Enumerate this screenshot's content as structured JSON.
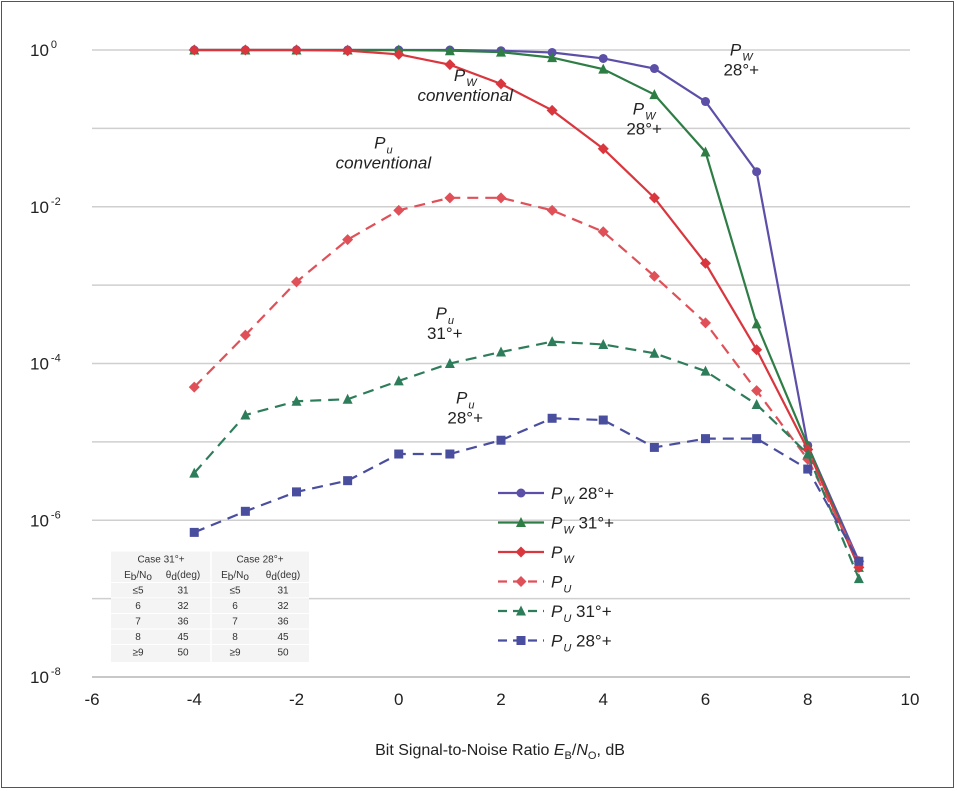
{
  "chart_data": {
    "type": "line",
    "y_scale": "log",
    "xlim": [
      -6,
      10
    ],
    "ylim": [
      1e-08,
      1
    ],
    "x_ticks": [
      "-6",
      "-4",
      "-2",
      "0",
      "2",
      "4",
      "6",
      "8",
      "10"
    ],
    "y_ticks": [
      {
        "base": "10",
        "exp": "0"
      },
      {
        "base": "10",
        "exp": "-2"
      },
      {
        "base": "10",
        "exp": "-4"
      },
      {
        "base": "10",
        "exp": "-6"
      },
      {
        "base": "10",
        "exp": "-8"
      }
    ],
    "grid": "horizontal",
    "xlabel": {
      "prefix": "Bit Signal-to-Noise Ratio ",
      "e": "E",
      "e_sub": "B",
      "slash": "/",
      "n": "N",
      "n_sub": "O",
      "suffix": ", dB"
    },
    "legend_position": "bottom-center",
    "series": [
      {
        "name_main": "P",
        "name_sub": "W",
        "name_suffix": " 28°+",
        "color": "#5b4fa8",
        "dash": false,
        "marker": "circle",
        "x": [
          -4,
          -3,
          -2,
          -1,
          0,
          1,
          2,
          3,
          4,
          5,
          6,
          7,
          8,
          9
        ],
        "y": [
          1.0,
          1.0,
          1.0,
          1.0,
          1.0,
          1.0,
          0.98,
          0.93,
          0.78,
          0.58,
          0.22,
          0.028,
          9e-06,
          3e-07
        ]
      },
      {
        "name_main": "P",
        "name_sub": "W",
        "name_suffix": " 31°+",
        "color": "#2e7d45",
        "dash": false,
        "marker": "triangle",
        "x": [
          -4,
          -3,
          -2,
          -1,
          0,
          1,
          2,
          3,
          4,
          5,
          6,
          7,
          8,
          9
        ],
        "y": [
          1.0,
          1.0,
          1.0,
          1.0,
          1.0,
          0.98,
          0.94,
          0.8,
          0.57,
          0.27,
          0.05,
          0.00032,
          9e-06,
          2.5e-07
        ]
      },
      {
        "name_main": "P",
        "name_sub": "W",
        "name_suffix": "",
        "color": "#d9363e",
        "dash": false,
        "marker": "diamond",
        "x": [
          -4,
          -3,
          -2,
          -1,
          0,
          1,
          2,
          3,
          4,
          5,
          6,
          7,
          8,
          9
        ],
        "y": [
          1.0,
          1.0,
          1.0,
          0.98,
          0.88,
          0.65,
          0.37,
          0.17,
          0.055,
          0.013,
          0.0019,
          0.00015,
          8e-06,
          2.5e-07
        ]
      },
      {
        "name_main": "P",
        "name_sub": "U",
        "name_suffix": "",
        "color": "#e05058",
        "dash": true,
        "marker": "diamond",
        "x": [
          -4,
          -3,
          -2,
          -1,
          0,
          1,
          2,
          3,
          4,
          5,
          6,
          7,
          8,
          9
        ],
        "y": [
          5e-05,
          0.00023,
          0.0011,
          0.0038,
          0.009,
          0.013,
          0.013,
          0.009,
          0.0048,
          0.0013,
          0.00033,
          4.5e-05,
          6e-06,
          3e-07
        ]
      },
      {
        "name_main": "P",
        "name_sub": "U",
        "name_suffix": " 31°+",
        "color": "#2e7d5a",
        "dash": true,
        "marker": "triangle",
        "x": [
          -4,
          -3,
          -2,
          -1,
          0,
          1,
          2,
          3,
          4,
          5,
          6,
          7,
          8,
          9
        ],
        "y": [
          4e-06,
          2.2e-05,
          3.3e-05,
          3.5e-05,
          6e-05,
          0.0001,
          0.00014,
          0.00019,
          0.000175,
          0.000135,
          8e-05,
          3e-05,
          7e-06,
          1.8e-07
        ]
      },
      {
        "name_main": "P",
        "name_sub": "U",
        "name_suffix": " 28°+",
        "color": "#4a4e9e",
        "dash": true,
        "marker": "square",
        "x": [
          -4,
          -3,
          -2,
          -1,
          0,
          1,
          2,
          3,
          4,
          5,
          6,
          7,
          8,
          9
        ],
        "y": [
          7e-07,
          1.3e-06,
          2.3e-06,
          3.2e-06,
          7e-06,
          7e-06,
          1.05e-05,
          2e-05,
          1.9e-05,
          8.5e-06,
          1.1e-05,
          1.1e-05,
          4.5e-06,
          3e-07
        ]
      }
    ],
    "annotations": [
      {
        "main": "P",
        "sub": "W",
        "line2": "28°+",
        "x": 6.7,
        "y": 0.85
      },
      {
        "main": "P",
        "sub": "W",
        "line2": "28°+",
        "x": 4.8,
        "y": 0.15
      },
      {
        "main": "P",
        "sub": "W",
        "line2": "conventional",
        "x": 1.3,
        "y": 0.4
      },
      {
        "main": "P",
        "sub": "u",
        "line2": "conventional",
        "x": -0.3,
        "y": 0.055
      },
      {
        "main": "P",
        "sub": "u",
        "line2": "31°+",
        "x": 0.9,
        "y": 0.00037
      },
      {
        "main": "P",
        "sub": "u",
        "line2": "28°+",
        "x": 1.3,
        "y": 3.1e-05
      }
    ],
    "case_table": {
      "groups": [
        "Case 31°+",
        "Case 28°+"
      ],
      "header": {
        "col1": "E",
        "col1_sub": "b",
        "col1_slash": "/N",
        "col1_sub2": "o",
        "col2": "θ",
        "col2_sub": "d",
        "col2_rest": "(deg)"
      },
      "rows": [
        {
          "eb": "≤5",
          "theta31": "31",
          "eb2": "≤5",
          "theta28": "31"
        },
        {
          "eb": "6",
          "theta31": "32",
          "eb2": "6",
          "theta28": "32"
        },
        {
          "eb": "7",
          "theta31": "36",
          "eb2": "7",
          "theta28": "36"
        },
        {
          "eb": "8",
          "theta31": "45",
          "eb2": "8",
          "theta28": "45"
        },
        {
          "eb": "≥9",
          "theta31": "50",
          "eb2": "≥9",
          "theta28": "50"
        }
      ]
    }
  }
}
